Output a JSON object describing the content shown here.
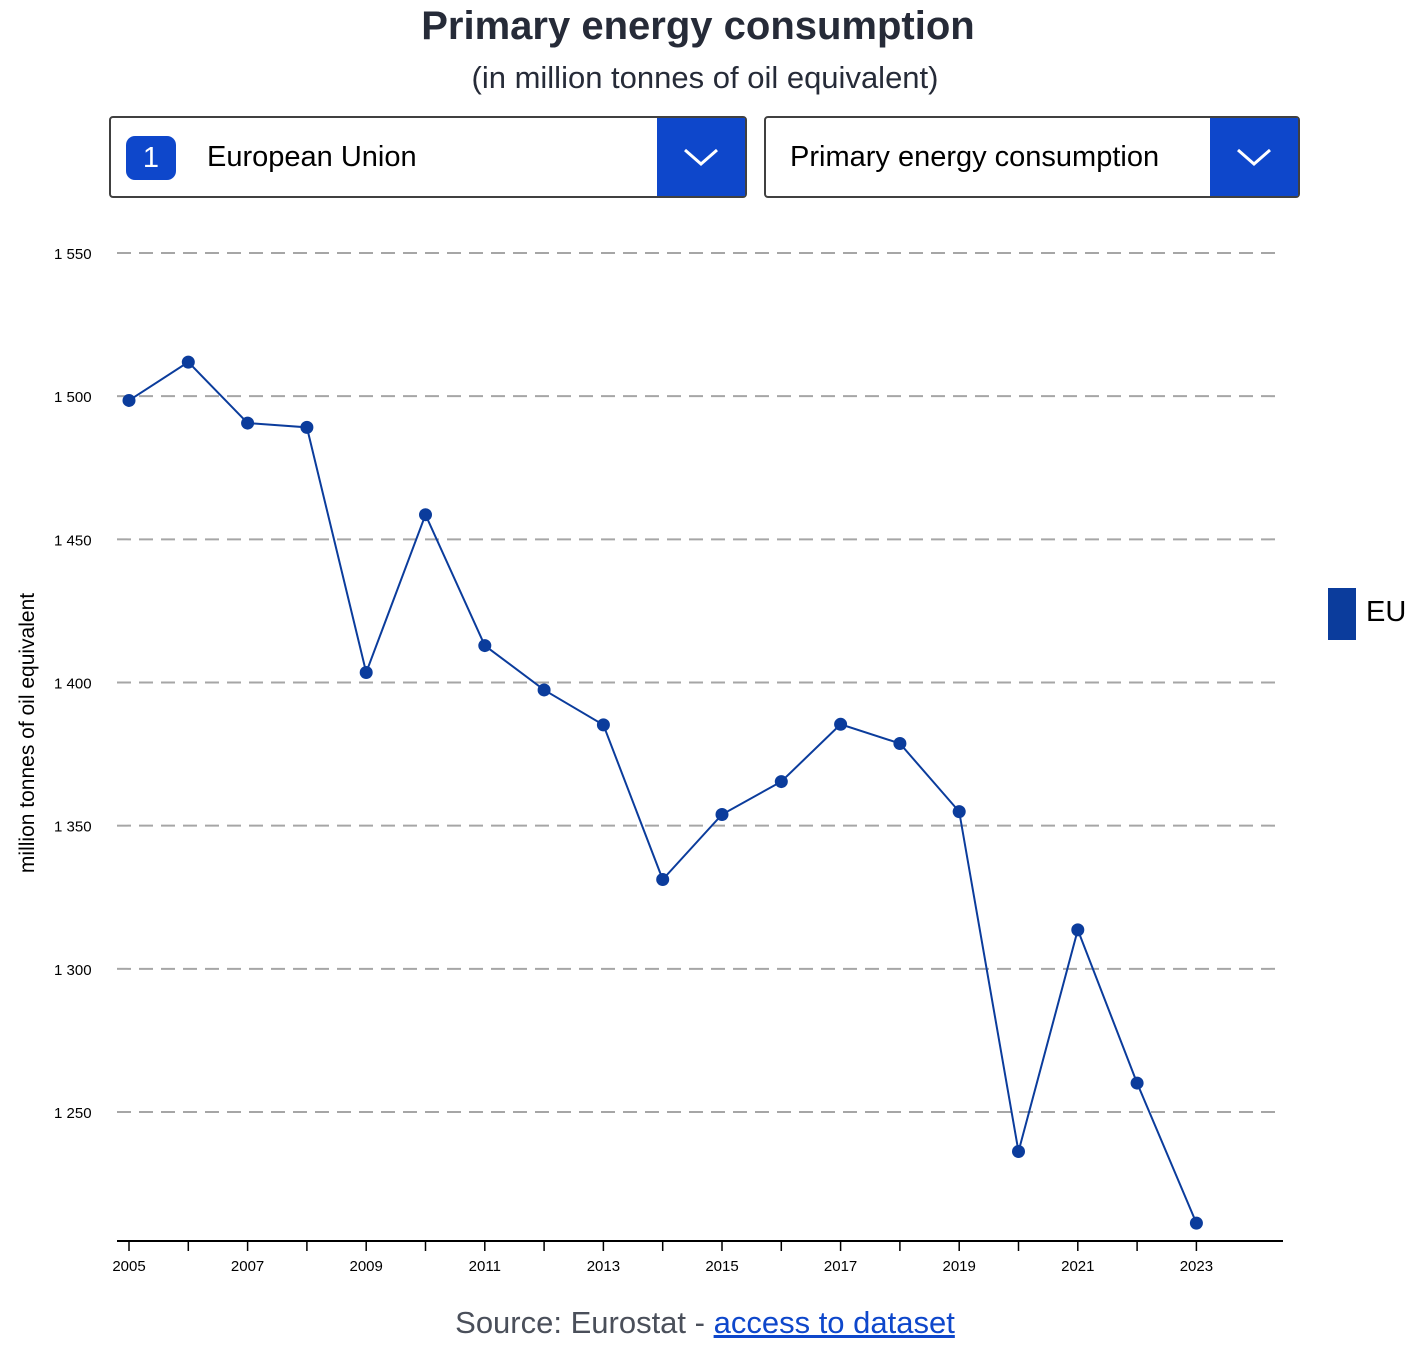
{
  "header": {
    "title": "Primary energy consumption",
    "subtitle": "(in million tonnes of oil equivalent)"
  },
  "filters": {
    "country": {
      "count": "1",
      "selected": "European Union"
    },
    "indicator": {
      "selected": "Primary energy consumption"
    }
  },
  "legend": {
    "items": [
      {
        "label": "EU",
        "color": "#0b3c9c"
      }
    ]
  },
  "source": {
    "prefix": "Source: Eurostat - ",
    "link_text": "access to dataset"
  },
  "colors": {
    "accent": "#0e47cb",
    "series": "#0b3c9c",
    "grid": "#a6a6a6"
  },
  "chart_data": {
    "type": "line",
    "ylabel": "million tonnes of oil equivalent",
    "ylim": [
      1210,
      1560
    ],
    "yticks": [
      1250,
      1300,
      1350,
      1400,
      1450,
      1500,
      1550
    ],
    "ytick_labels": [
      "1 250",
      "1 300",
      "1 350",
      "1 400",
      "1 450",
      "1 500",
      "1 550"
    ],
    "xticks_labeled": [
      "2005",
      "2007",
      "2009",
      "2011",
      "2013",
      "2015",
      "2017",
      "2019",
      "2021",
      "2023"
    ],
    "grid": true,
    "legend_position": "right",
    "x": [
      "2005",
      "2006",
      "2007",
      "2008",
      "2009",
      "2010",
      "2011",
      "2012",
      "2013",
      "2014",
      "2015",
      "2016",
      "2017",
      "2018",
      "2019",
      "2020",
      "2021",
      "2022",
      "2023"
    ],
    "series": [
      {
        "name": "EU",
        "values": [
          1498.5,
          1511.9,
          1490.6,
          1489.1,
          1403.5,
          1458.6,
          1412.9,
          1397.4,
          1385.2,
          1331.2,
          1353.9,
          1365.4,
          1385.4,
          1378.7,
          1354.9,
          1236.2,
          1313.6,
          1260.1,
          1211.2
        ]
      }
    ]
  }
}
